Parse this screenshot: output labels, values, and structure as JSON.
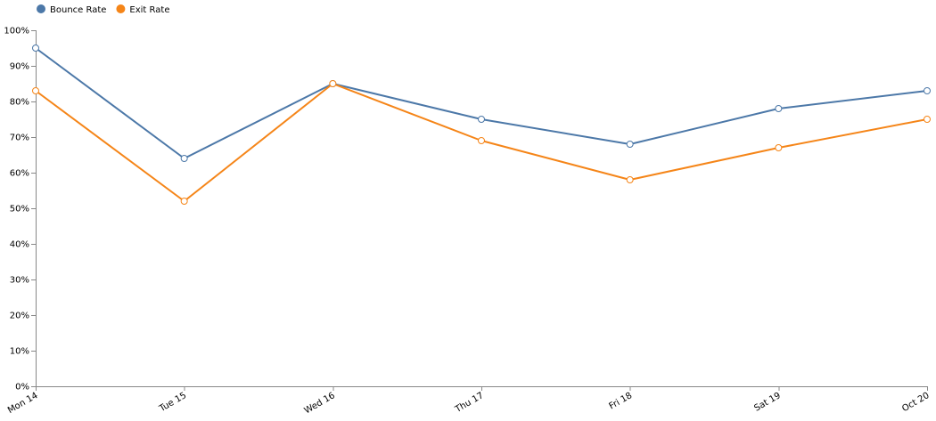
{
  "chart_data": {
    "type": "line",
    "categories": [
      "Mon 14",
      "Tue 15",
      "Wed 16",
      "Thu 17",
      "Fri 18",
      "Sat 19",
      "Oct 20"
    ],
    "series": [
      {
        "name": "Bounce Rate",
        "color": "#4c78a8",
        "values": [
          0.95,
          0.64,
          0.85,
          0.75,
          0.68,
          0.78,
          0.83
        ]
      },
      {
        "name": "Exit Rate",
        "color": "#f58518",
        "values": [
          0.83,
          0.52,
          0.85,
          0.69,
          0.58,
          0.67,
          0.75
        ]
      }
    ],
    "y_ticks": [
      "0%",
      "10%",
      "20%",
      "30%",
      "40%",
      "50%",
      "60%",
      "70%",
      "80%",
      "90%",
      "100%"
    ],
    "ylim": [
      0,
      1
    ],
    "title": "",
    "xlabel": "",
    "ylabel": "",
    "grid": false,
    "legend_position": "top-left"
  }
}
